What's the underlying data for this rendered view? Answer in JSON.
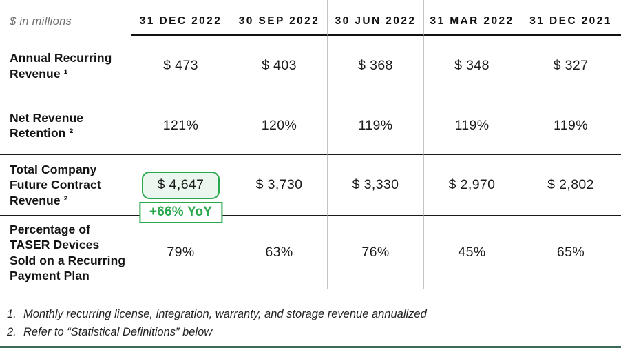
{
  "meta": {
    "units_note": "$ in millions"
  },
  "table": {
    "columns": [
      "31 DEC 2022",
      "30 SEP 2022",
      "30 JUN 2022",
      "31 MAR 2022",
      "31 DEC 2021"
    ],
    "rows": [
      {
        "label": "Annual Recurring\nRevenue ¹",
        "values": [
          "$ 473",
          "$ 403",
          "$ 368",
          "$ 348",
          "$ 327"
        ]
      },
      {
        "label": "Net Revenue\nRetention ²",
        "values": [
          "121%",
          "120%",
          "119%",
          "119%",
          "119%"
        ]
      },
      {
        "label": "Total Company\nFuture Contract\nRevenue ²",
        "values": [
          "$ 4,647",
          "$ 3,730",
          "$ 3,330",
          "$ 2,970",
          "$ 2,802"
        ],
        "badge": "+66% YoY"
      },
      {
        "label": "Percentage of\nTASER Devices\nSold on a Recurring\nPayment Plan",
        "values": [
          "79%",
          "63%",
          "76%",
          "45%",
          "65%"
        ]
      }
    ]
  },
  "footnotes": [
    {
      "num": "1.",
      "text": "Monthly recurring license, integration, warranty, and storage revenue annualized"
    },
    {
      "num": "2.",
      "text": "Refer to “Statistical Definitions” below"
    }
  ],
  "colors": {
    "accent_green": "#2aa84e",
    "highlight_fill": "#eaf6ee",
    "bottom_rule_green": "#3e6b55",
    "divider_gray": "#c4c4c4",
    "text_black": "#1b1b1b",
    "units_note_gray": "#6f6f6f"
  }
}
